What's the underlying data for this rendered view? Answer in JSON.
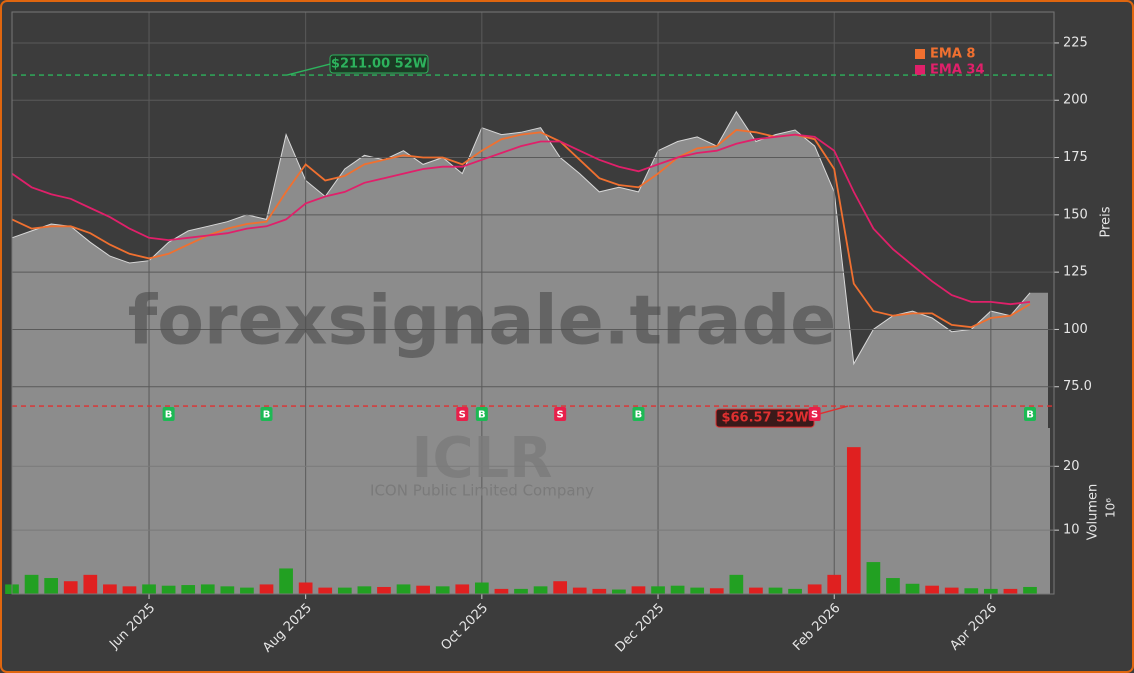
{
  "chart_data": {
    "type": "price-volume",
    "title": "ICLR",
    "subtitle": "ICON Public Limited Company",
    "watermark": "forexsignale.trade",
    "categories": [
      null,
      null,
      null,
      null,
      null,
      null,
      null,
      "Jun 2025",
      null,
      null,
      null,
      null,
      null,
      null,
      null,
      "Aug 2025",
      null,
      null,
      null,
      null,
      null,
      null,
      null,
      null,
      "Oct 2025",
      null,
      null,
      null,
      null,
      null,
      null,
      null,
      null,
      "Dec 2025",
      null,
      null,
      null,
      null,
      null,
      null,
      null,
      null,
      "Feb 2026",
      null,
      null,
      null,
      null,
      null,
      null,
      null,
      "Apr 2026",
      null,
      null
    ],
    "price": {
      "name": "Close",
      "color": "#8c8c8c",
      "values": [
        140,
        143,
        146,
        145,
        138,
        132,
        129,
        130,
        138,
        143,
        145,
        147,
        150,
        148,
        185,
        165,
        158,
        170,
        176,
        174,
        178,
        172,
        175,
        168,
        188,
        185,
        186,
        188,
        175,
        168,
        160,
        162,
        160,
        178,
        182,
        184,
        180,
        195,
        182,
        185,
        187,
        180,
        160,
        85,
        100,
        106,
        108,
        105,
        99,
        100,
        108,
        106,
        116
      ]
    },
    "series": [
      {
        "name": "EMA 8",
        "color": "#f07030",
        "values": [
          148,
          144,
          145,
          145,
          142,
          137,
          133,
          131,
          133,
          137,
          141,
          144,
          146,
          147,
          160,
          172,
          165,
          167,
          172,
          174,
          176,
          175,
          175,
          172,
          178,
          183,
          185,
          186,
          182,
          174,
          166,
          163,
          162,
          168,
          175,
          179,
          180,
          187,
          186,
          184,
          185,
          183,
          170,
          120,
          108,
          106,
          107,
          107,
          102,
          101,
          105,
          106,
          111
        ]
      },
      {
        "name": "EMA 34",
        "color": "#e0206a",
        "values": [
          168,
          162,
          159,
          157,
          153,
          149,
          144,
          140,
          139,
          140,
          141,
          142,
          144,
          145,
          148,
          155,
          158,
          160,
          164,
          166,
          168,
          170,
          171,
          171,
          174,
          177,
          180,
          182,
          182,
          178,
          174,
          171,
          169,
          172,
          175,
          177,
          178,
          181,
          183,
          184,
          185,
          184,
          178,
          160,
          144,
          135,
          128,
          121,
          115,
          112,
          112,
          111,
          112
        ]
      }
    ],
    "volume": {
      "values": [
        1.5,
        3,
        2.5,
        2,
        3,
        1.5,
        1.2,
        1.5,
        1.3,
        1.4,
        1.5,
        1.2,
        1.0,
        1.5,
        4,
        1.8,
        1,
        1,
        1.2,
        1.1,
        1.5,
        1.3,
        1.2,
        1.5,
        1.8,
        0.8,
        0.8,
        1.2,
        2,
        1,
        0.8,
        0.7,
        1.2,
        1.2,
        1.3,
        1.0,
        0.9,
        3,
        1.0,
        1.0,
        0.8,
        1.5,
        3,
        23,
        5,
        2.5,
        1.6,
        1.3,
        1.0,
        0.9,
        0.8,
        0.8,
        1.1
      ],
      "up_color": "#22a022",
      "down_color": "#e02020"
    },
    "ylabel": "Preis",
    "ylim": [
      57,
      238.5
    ],
    "yticks": [
      {
        "value": 75,
        "label": "75.0"
      },
      100,
      125,
      150,
      175,
      200,
      225
    ],
    "y2label": "Volumen",
    "y2exponent": "10⁶",
    "y2lim": [
      0,
      26
    ],
    "y2ticks": [
      10,
      20
    ],
    "grid": true,
    "legend": "upper right",
    "annotations": [
      {
        "label": "$211.00 52W",
        "value": 211,
        "color": "#2db35d"
      },
      {
        "label": "$66.57 52W",
        "value": 66.57,
        "color": "#e03030"
      }
    ],
    "signals": [
      {
        "label": "B",
        "index": 8
      },
      {
        "label": "B",
        "index": 13
      },
      {
        "label": "S",
        "index": 23
      },
      {
        "label": "B",
        "index": 24
      },
      {
        "label": "S",
        "index": 28
      },
      {
        "label": "B",
        "index": 32
      },
      {
        "label": "S",
        "index": 41
      },
      {
        "label": "B",
        "index": 52
      }
    ]
  }
}
